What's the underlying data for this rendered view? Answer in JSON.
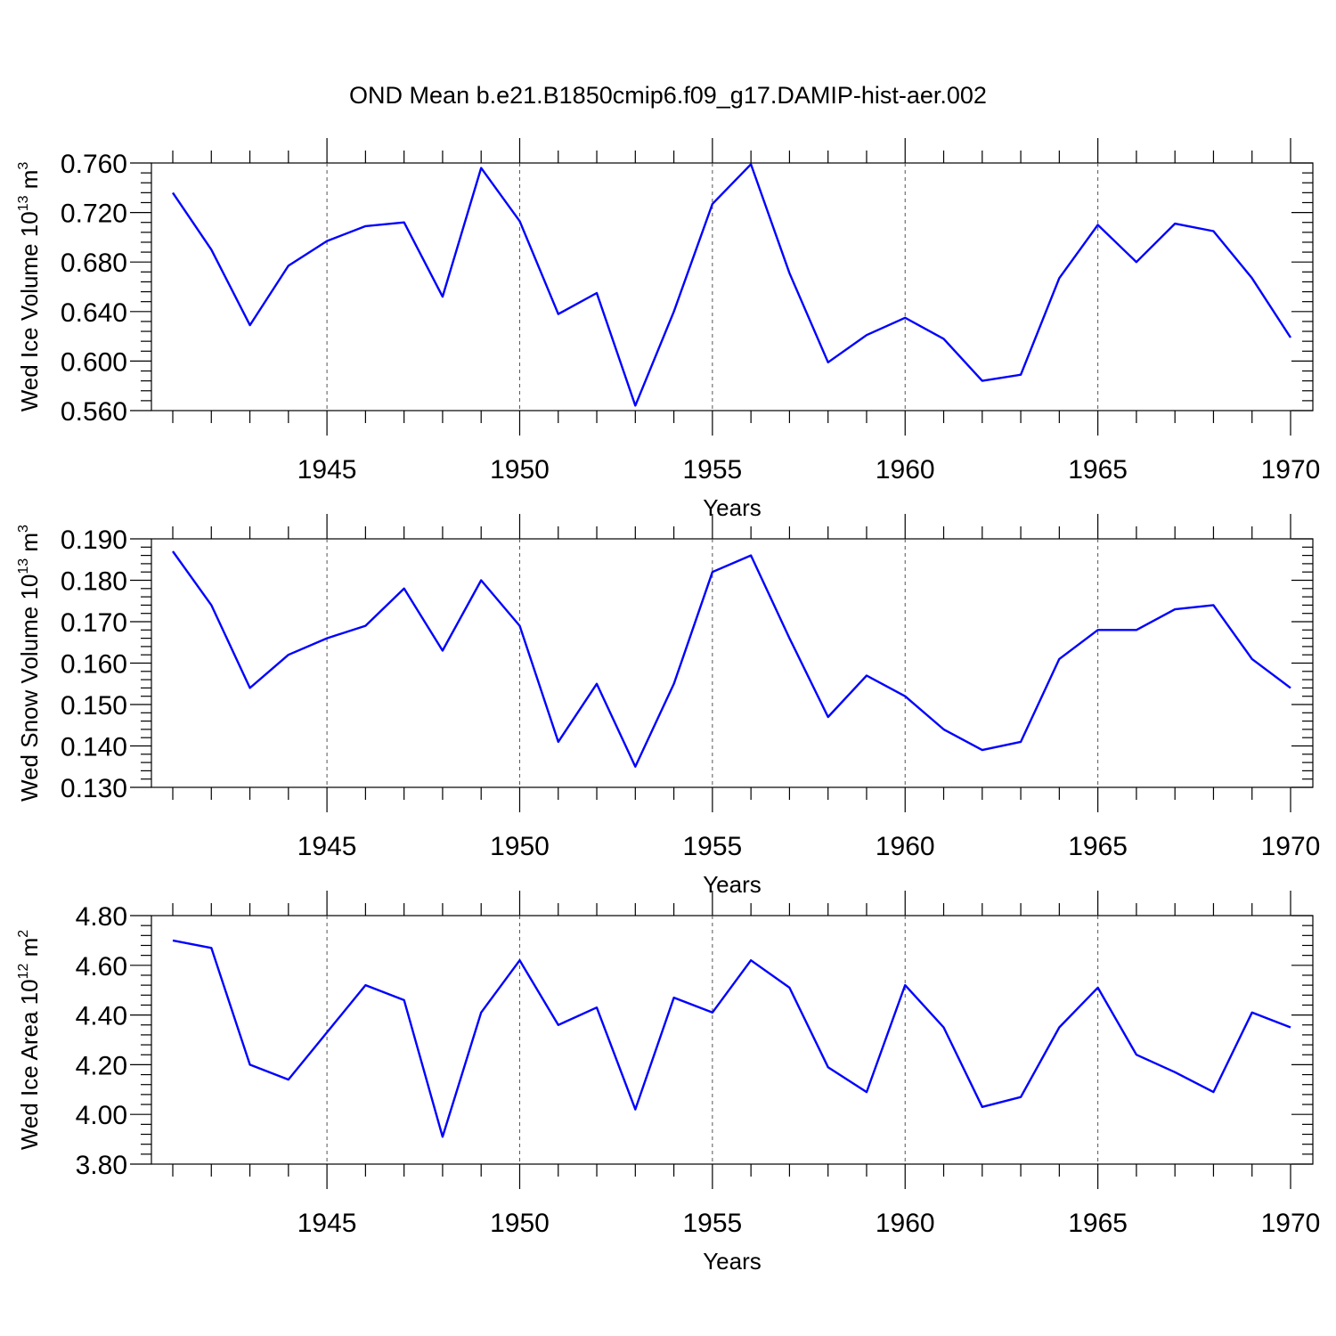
{
  "title": "OND Mean b.e21.B1850cmip6.f09_g17.DAMIP-hist-aer.002",
  "colors": {
    "line": "#0000ff",
    "grid": "#555555",
    "axis": "#000000"
  },
  "chart_data": [
    {
      "type": "line",
      "title": "",
      "xlabel": "Years",
      "ylabel_main": "Wed Ice Volume 10",
      "ylabel_exp": "13",
      "ylabel_unit": " m",
      "ylabel_unit_exp": "3",
      "xlim": [
        1941,
        1970
      ],
      "ylim": [
        0.56,
        0.76
      ],
      "yticks": [
        "0.560",
        "0.600",
        "0.640",
        "0.680",
        "0.720",
        "0.760"
      ],
      "xticks": [
        "1945",
        "1950",
        "1955",
        "1960",
        "1965",
        "1970"
      ],
      "x": [
        1941,
        1942,
        1943,
        1944,
        1945,
        1946,
        1947,
        1948,
        1949,
        1950,
        1951,
        1952,
        1953,
        1954,
        1955,
        1956,
        1957,
        1958,
        1959,
        1960,
        1961,
        1962,
        1963,
        1964,
        1965,
        1966,
        1967,
        1968,
        1969,
        1970
      ],
      "series": [
        {
          "name": "Wed Ice Volume",
          "values": [
            0.736,
            0.69,
            0.629,
            0.677,
            0.697,
            0.709,
            0.712,
            0.652,
            0.756,
            0.713,
            0.638,
            0.655,
            0.564,
            0.64,
            0.727,
            0.759,
            0.671,
            0.599,
            0.621,
            0.635,
            0.618,
            0.584,
            0.589,
            0.667,
            0.71,
            0.68,
            0.711,
            0.705,
            0.667,
            0.619
          ]
        }
      ]
    },
    {
      "type": "line",
      "title": "",
      "xlabel": "Years",
      "ylabel_main": "Wed Snow Volume 10",
      "ylabel_exp": "13",
      "ylabel_unit": " m",
      "ylabel_unit_exp": "3",
      "xlim": [
        1941,
        1970
      ],
      "ylim": [
        0.13,
        0.19
      ],
      "yticks": [
        "0.130",
        "0.140",
        "0.150",
        "0.160",
        "0.170",
        "0.180",
        "0.190"
      ],
      "xticks": [
        "1945",
        "1950",
        "1955",
        "1960",
        "1965",
        "1970"
      ],
      "x": [
        1941,
        1942,
        1943,
        1944,
        1945,
        1946,
        1947,
        1948,
        1949,
        1950,
        1951,
        1952,
        1953,
        1954,
        1955,
        1956,
        1957,
        1958,
        1959,
        1960,
        1961,
        1962,
        1963,
        1964,
        1965,
        1966,
        1967,
        1968,
        1969,
        1970
      ],
      "series": [
        {
          "name": "Wed Snow Volume",
          "values": [
            0.187,
            0.174,
            0.154,
            0.162,
            0.166,
            0.169,
            0.178,
            0.163,
            0.18,
            0.169,
            0.141,
            0.155,
            0.135,
            0.155,
            0.182,
            0.186,
            0.166,
            0.147,
            0.157,
            0.152,
            0.144,
            0.139,
            0.141,
            0.161,
            0.168,
            0.168,
            0.173,
            0.174,
            0.161,
            0.154
          ]
        }
      ]
    },
    {
      "type": "line",
      "title": "",
      "xlabel": "Years",
      "ylabel_main": "Wed Ice Area 10",
      "ylabel_exp": "12",
      "ylabel_unit": " m",
      "ylabel_unit_exp": "2",
      "xlim": [
        1941,
        1970
      ],
      "ylim": [
        3.8,
        4.8
      ],
      "yticks": [
        "3.80",
        "4.00",
        "4.20",
        "4.40",
        "4.60",
        "4.80"
      ],
      "xticks": [
        "1945",
        "1950",
        "1955",
        "1960",
        "1965",
        "1970"
      ],
      "x": [
        1941,
        1942,
        1943,
        1944,
        1945,
        1946,
        1947,
        1948,
        1949,
        1950,
        1951,
        1952,
        1953,
        1954,
        1955,
        1956,
        1957,
        1958,
        1959,
        1960,
        1961,
        1962,
        1963,
        1964,
        1965,
        1966,
        1967,
        1968,
        1969,
        1970
      ],
      "series": [
        {
          "name": "Wed Ice Area",
          "values": [
            4.7,
            4.67,
            4.2,
            4.14,
            4.33,
            4.52,
            4.46,
            3.91,
            4.41,
            4.62,
            4.36,
            4.43,
            4.02,
            4.47,
            4.41,
            4.62,
            4.51,
            4.19,
            4.09,
            4.52,
            4.35,
            4.03,
            4.07,
            4.35,
            4.51,
            4.24,
            4.17,
            4.09,
            4.41,
            4.35
          ]
        }
      ]
    }
  ]
}
